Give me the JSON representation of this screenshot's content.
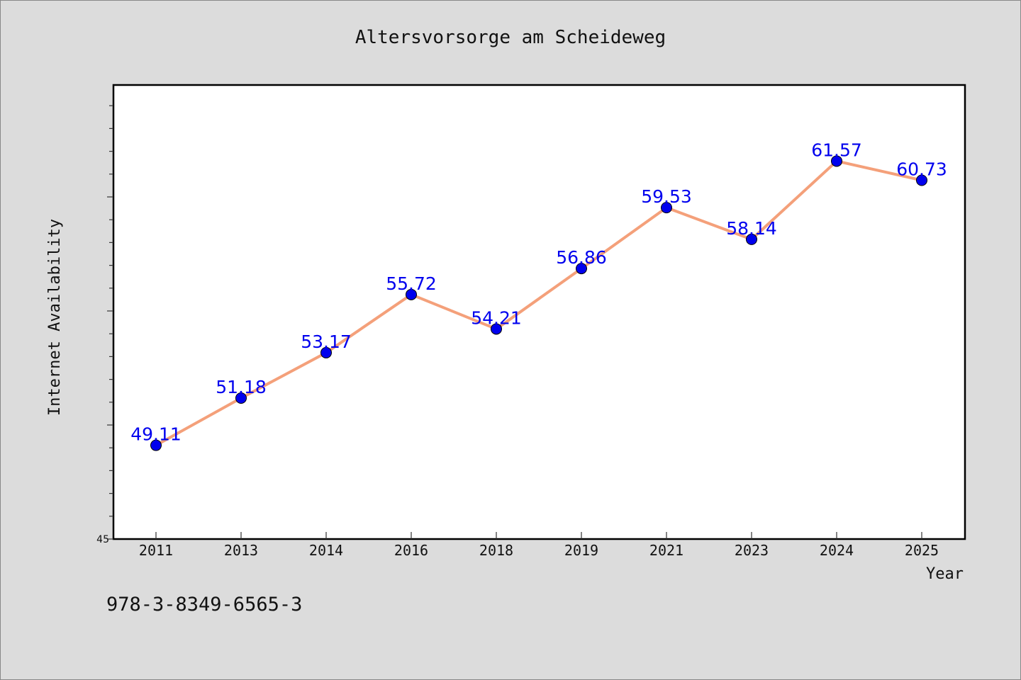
{
  "chart_data": {
    "type": "line",
    "title": "Altersvorsorge am Scheideweg",
    "xlabel": "Year",
    "ylabel": "Internet Availability",
    "categories": [
      "2011",
      "2013",
      "2014",
      "2016",
      "2018",
      "2019",
      "2021",
      "2023",
      "2024",
      "2025"
    ],
    "series": [
      {
        "values": [
          49.11,
          51.18,
          53.17,
          55.72,
          54.21,
          56.86,
          59.53,
          58.14,
          61.57,
          60.73
        ],
        "data_labels": [
          "49.11",
          "51.18",
          "53.17",
          "55.72",
          "54.21",
          "56.86",
          "59.53",
          "58.14",
          "61.57",
          "60.73"
        ],
        "line_color": "#f4a07a",
        "marker_color": "#0000ee",
        "label_color": "#0000ee"
      }
    ],
    "ylim": [
      45,
      65
    ],
    "y_tick_labels": [
      "45"
    ],
    "grid": false,
    "legend": "none"
  },
  "footer_text": "978-3-8349-6565-3"
}
